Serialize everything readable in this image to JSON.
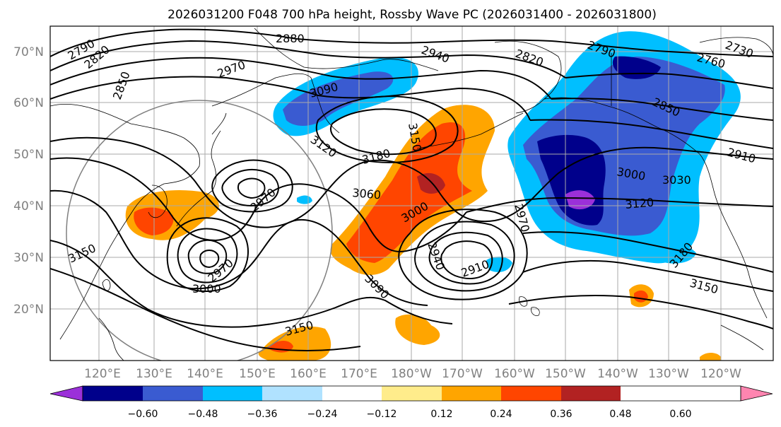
{
  "title": "2026031200 F048 700 hPa height, Rossby Wave PC (2026031400 - 2026031800)",
  "lat_labels": [
    "70°N",
    "60°N",
    "50°N",
    "40°N",
    "30°N",
    "20°N"
  ],
  "lon_labels": [
    "120°E",
    "130°E",
    "140°E",
    "150°E",
    "160°E",
    "170°E",
    "180°W",
    "170°W",
    "160°W",
    "150°W",
    "140°W",
    "130°W",
    "120°W"
  ],
  "colorbar": {
    "ticks": [
      "−0.60",
      "−0.48",
      "−0.36",
      "−0.24",
      "−0.12",
      "0.12",
      "0.24",
      "0.36",
      "0.48",
      "0.60"
    ],
    "colors": [
      "#9b30d9",
      "#00008b",
      "#3a5bd1",
      "#00bfff",
      "#b0e2ff",
      "#ffffff",
      "#ffec8b",
      "#ffa500",
      "#ff4500",
      "#b22222",
      "#ff85b0"
    ]
  },
  "contour_labels": [
    {
      "text": "2880"
    },
    {
      "text": "2940"
    },
    {
      "text": "2790"
    },
    {
      "text": "2820"
    },
    {
      "text": "2850"
    },
    {
      "text": "2970"
    },
    {
      "text": "3090"
    },
    {
      "text": "3150"
    },
    {
      "text": "3180"
    },
    {
      "text": "3120"
    },
    {
      "text": "3060"
    },
    {
      "text": "2970"
    },
    {
      "text": "3000"
    },
    {
      "text": "3150"
    },
    {
      "text": "2970"
    },
    {
      "text": "3000"
    },
    {
      "text": "2970"
    },
    {
      "text": "2940"
    },
    {
      "text": "2910"
    },
    {
      "text": "3090"
    },
    {
      "text": "3150"
    },
    {
      "text": "2820"
    },
    {
      "text": "2790"
    },
    {
      "text": "2760"
    },
    {
      "text": "2730"
    },
    {
      "text": "2850"
    },
    {
      "text": "2910"
    },
    {
      "text": "3000"
    },
    {
      "text": "3030"
    },
    {
      "text": "3120"
    },
    {
      "text": "3180"
    },
    {
      "text": "3150"
    },
    {
      "text": "2970"
    }
  ]
}
